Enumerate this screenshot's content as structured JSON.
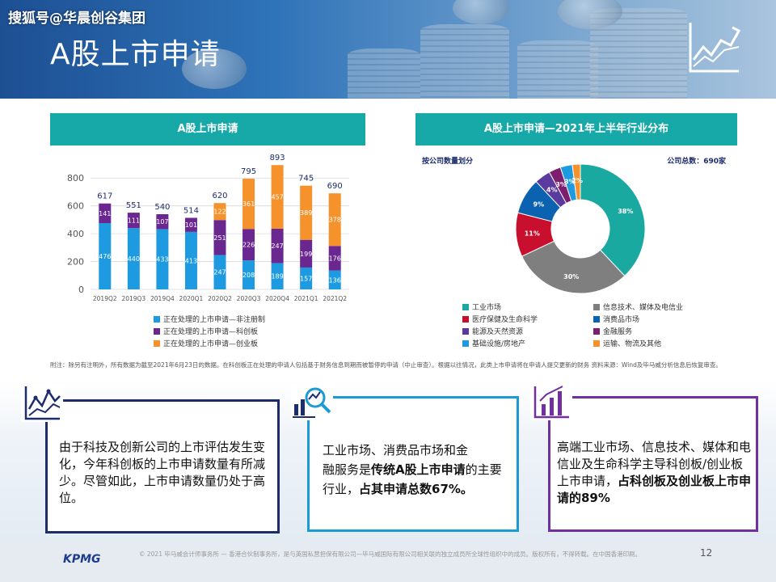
{
  "watermark": "搜狐号@华晨创谷集团",
  "page_title": "A股上市申请",
  "colors": {
    "teal": "#17a8a8",
    "nonreg": "#1e9be0",
    "star": "#6b2790",
    "chinext": "#f6922b",
    "navy": "#1d2c6b",
    "blue_border": "#1c9ad6",
    "purple_border": "#7030a0"
  },
  "left_panel": {
    "title": "A股上市申请",
    "legend": [
      "正在处理的上市申请—非注册制",
      "正在处理的上市申请—科创板",
      "正在处理的上市申请—创业板"
    ]
  },
  "right_panel": {
    "title": "A股上市申请—2021年上半年行业分布",
    "sub_left": "按公司数量划分",
    "sub_right": "公司总数：690家",
    "legend": [
      {
        "label": "工业市场",
        "color": "#1aa9a1"
      },
      {
        "label": "信息技术、媒体及电信业",
        "color": "#7f7f7f"
      },
      {
        "label": "医疗保健及生命科学",
        "color": "#c8102e"
      },
      {
        "label": "消费品市场",
        "color": "#0b62b0"
      },
      {
        "label": "能源及天然资源",
        "color": "#5a3a9e"
      },
      {
        "label": "金融服务",
        "color": "#7d1e6e"
      },
      {
        "label": "基础设施/房地产",
        "color": "#1e9be0"
      },
      {
        "label": "运输、物流及其他",
        "color": "#f6922b"
      }
    ]
  },
  "chart_data": [
    {
      "type": "bar",
      "title": "A股上市申请",
      "categories": [
        "2019Q2",
        "2019Q3",
        "2019Q4",
        "2020Q1",
        "2020Q2",
        "2020Q3",
        "2020Q4",
        "2021Q1",
        "2021Q2"
      ],
      "series": [
        {
          "name": "正在处理的上市申请—非注册制",
          "values": [
            476,
            440,
            433,
            413,
            247,
            208,
            189,
            157,
            136
          ]
        },
        {
          "name": "正在处理的上市申请—科创板",
          "values": [
            141,
            111,
            107,
            101,
            251,
            226,
            247,
            199,
            176
          ]
        },
        {
          "name": "正在处理的上市申请—创业板",
          "values": [
            null,
            null,
            null,
            null,
            122,
            361,
            457,
            389,
            378
          ]
        }
      ],
      "totals": [
        617,
        551,
        540,
        514,
        620,
        795,
        893,
        745,
        690
      ],
      "yticks": [
        0,
        200,
        400,
        600,
        800
      ],
      "ylim": [
        0,
        900
      ],
      "stacked": true,
      "grid": true
    },
    {
      "type": "pie",
      "title": "A股上市申请—2021年上半年行业分布",
      "donut": true,
      "slices": [
        {
          "label": "工业市场",
          "value": 38,
          "text": "38%"
        },
        {
          "label": "信息技术、媒体及电信业",
          "value": 30,
          "text": "30%"
        },
        {
          "label": "医疗保健及生命科学",
          "value": 11,
          "text": "11%"
        },
        {
          "label": "消费品市场",
          "value": 9,
          "text": "9%"
        },
        {
          "label": "能源及天然资源",
          "value": 4,
          "text": "4%"
        },
        {
          "label": "金融服务",
          "value": 3,
          "text": "3%"
        },
        {
          "label": "基础设施/房地产",
          "value": 3,
          "text": "3%"
        },
        {
          "label": "运输、物流及其他",
          "value": 2,
          "text": "2%"
        }
      ]
    }
  ],
  "footnote": "附注：除另有注明外，所有数据为截至2021年6月23日的数据。在科创板正在处理的申请人包括基于财务信息到期而被暂停的申请（中止审查）。根据以往情况，此类上市申请将在申请人提交更新的财务    资料来源：Wind及毕马威分析信息后恢复审查。",
  "boxes": {
    "left": "由于科技及创新公司的上市评估发生变化，今年科创板的上市申请数量有所减少。尽管如此，上市申请数量仍处于高位。",
    "middle_line1": "工业市场、消费品市场和金",
    "middle_line2_pre": "融服务是",
    "middle_line2_bold": "传统A股上市申请",
    "middle_line2_post": "的主要行业，",
    "middle_line2_bold2": "占其申请总数67%。",
    "right_pre": "高端工业市场、信息技术、媒体和电信业及生命科学主导科创板/创业板上市申请，",
    "right_bold": "占科创板及创业板上市申请的89%"
  },
  "footer": {
    "logo": "KPMG",
    "copyright": "© 2021 毕马威会计师事务所 — 香港合伙制事务所，是与英国私营担保有限公司—毕马威国际有限公司相关联的独立成员所全球性组织中的成员。版权所有，不得转载。在中国香港印刷。",
    "page": "12"
  }
}
